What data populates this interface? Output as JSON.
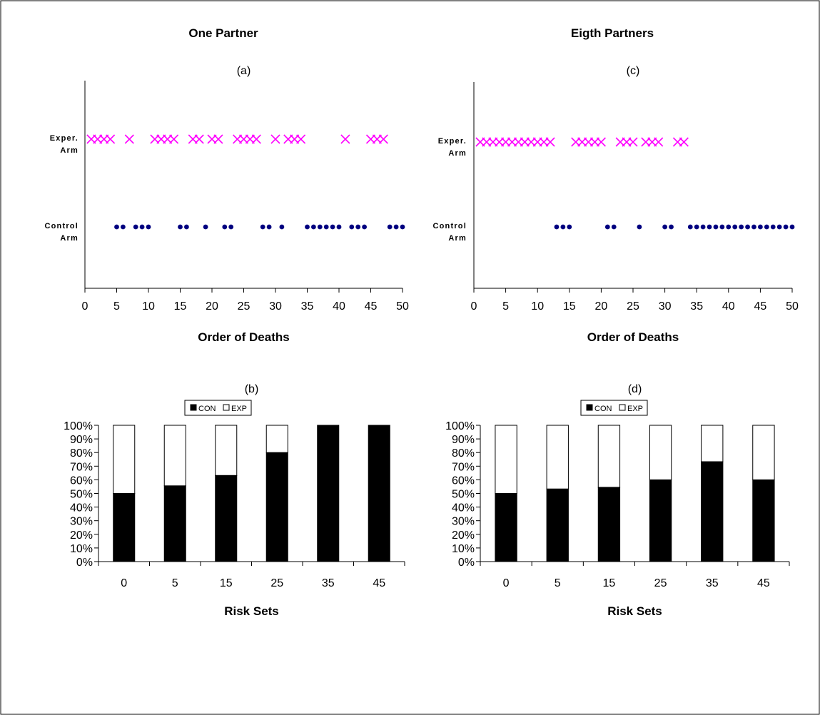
{
  "page": {
    "left_title": "One Partner",
    "right_title": "Eigth Partners"
  },
  "chart_data": [
    {
      "id": "a",
      "type": "scatter",
      "title": "(a)",
      "xlabel": "Order of Deaths",
      "xlim": [
        0,
        50
      ],
      "xticks": [
        0,
        5,
        10,
        15,
        20,
        25,
        30,
        35,
        40,
        45,
        50
      ],
      "ycategories": [
        "Exper. Arm",
        "Control Arm"
      ],
      "ycategory_lines": [
        [
          "Exper.",
          "Arm"
        ],
        [
          "Control",
          "Arm"
        ]
      ],
      "series": [
        {
          "category": "Exper. Arm",
          "marker": "x",
          "color": "#ff00ff",
          "x": [
            1,
            2,
            3,
            4,
            7,
            11,
            12,
            13,
            14,
            17,
            18,
            20,
            21,
            24,
            25,
            26,
            27,
            30,
            32,
            33,
            34,
            41,
            45,
            46,
            47
          ]
        },
        {
          "category": "Control Arm",
          "marker": "dot",
          "color": "#000080",
          "x": [
            5,
            6,
            8,
            9,
            10,
            15,
            16,
            19,
            22,
            23,
            28,
            29,
            31,
            35,
            36,
            37,
            38,
            39,
            40,
            42,
            43,
            44,
            48,
            49,
            50
          ]
        }
      ]
    },
    {
      "id": "b",
      "type": "bar",
      "stacked": true,
      "title": "(b)",
      "xlabel": "Risk Sets",
      "categories": [
        "0",
        "5",
        "15",
        "25",
        "35",
        "45"
      ],
      "yticks": [
        "0%",
        "10%",
        "20%",
        "30%",
        "40%",
        "50%",
        "60%",
        "70%",
        "80%",
        "90%",
        "100%"
      ],
      "ylim": [
        0,
        100
      ],
      "legend_position": "top",
      "series": [
        {
          "name": "CON",
          "color": "#000000",
          "values": [
            50,
            55.6,
            63.2,
            80,
            100,
            100
          ]
        },
        {
          "name": "EXP",
          "color": "#ffffff",
          "values": [
            50,
            44.4,
            36.8,
            20,
            0,
            0
          ]
        }
      ]
    },
    {
      "id": "c",
      "type": "scatter",
      "title": "(c)",
      "xlabel": "Order of Deaths",
      "xlim": [
        0,
        50
      ],
      "xticks": [
        0,
        5,
        10,
        15,
        20,
        25,
        30,
        35,
        40,
        45,
        50
      ],
      "ycategories": [
        "Exper. Arm",
        "Control Arm"
      ],
      "ycategory_lines": [
        [
          "Exper.",
          "Arm"
        ],
        [
          "Control",
          "Arm"
        ]
      ],
      "series": [
        {
          "category": "Exper. Arm",
          "marker": "x",
          "color": "#ff00ff",
          "x": [
            1,
            2,
            3,
            4,
            5,
            6,
            7,
            8,
            9,
            10,
            11,
            12,
            16,
            17,
            18,
            19,
            20,
            23,
            24,
            25,
            27,
            28,
            29,
            32,
            33
          ]
        },
        {
          "category": "Control Arm",
          "marker": "dot",
          "color": "#000080",
          "x": [
            13,
            14,
            15,
            21,
            22,
            26,
            30,
            31,
            34,
            35,
            36,
            37,
            38,
            39,
            40,
            41,
            42,
            43,
            44,
            45,
            46,
            47,
            48,
            49,
            50
          ]
        }
      ]
    },
    {
      "id": "d",
      "type": "bar",
      "stacked": true,
      "title": "(d)",
      "xlabel": "Risk Sets",
      "categories": [
        "0",
        "5",
        "15",
        "25",
        "35",
        "45"
      ],
      "yticks": [
        "0%",
        "10%",
        "20%",
        "30%",
        "40%",
        "50%",
        "60%",
        "70%",
        "80%",
        "90%",
        "100%"
      ],
      "ylim": [
        0,
        100
      ],
      "legend_position": "top",
      "series": [
        {
          "name": "CON",
          "color": "#000000",
          "values": [
            50,
            53.3,
            54.5,
            60,
            73.3,
            60
          ]
        },
        {
          "name": "EXP",
          "color": "#ffffff",
          "values": [
            50,
            46.7,
            45.5,
            40,
            26.7,
            40
          ]
        }
      ]
    }
  ]
}
